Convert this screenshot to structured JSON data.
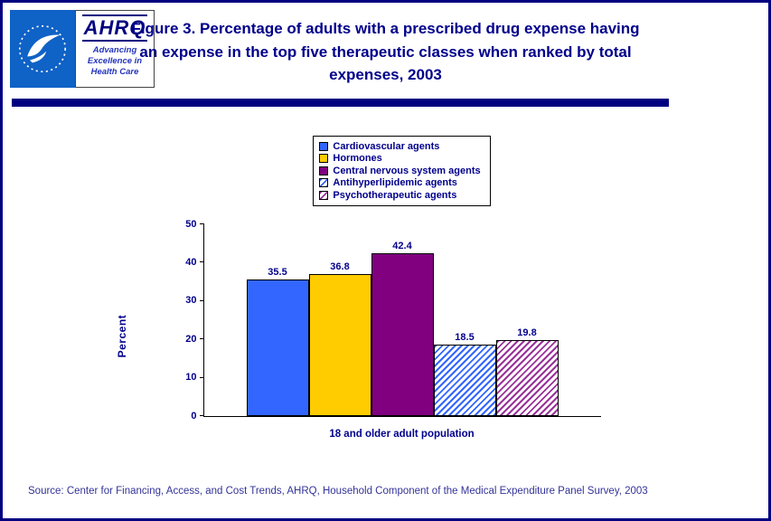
{
  "page": {
    "title": "Figure 3. Percentage of adults with a prescribed drug expense having an expense in the top five therapeutic classes when ranked by total expenses, 2003",
    "source": "Source: Center for Financing, Access, and Cost Trends, AHRQ, Household Component of the Medical Expenditure Panel Survey, 2003"
  },
  "logos": {
    "ahrq_name": "AHRQ",
    "ahrq_tagline_line1": "Advancing",
    "ahrq_tagline_line2": "Excellence in",
    "ahrq_tagline_line3": "Health Care"
  },
  "chart_data": {
    "type": "bar",
    "title": "Figure 3. Percentage of adults with a prescribed drug expense having an expense in the top five therapeutic classes when ranked by total expenses, 2003",
    "categories": [
      "18 and older adult population"
    ],
    "series": [
      {
        "name": "Cardiovascular agents",
        "values": [
          35.5
        ],
        "color": "#3366ff",
        "pattern": "solid"
      },
      {
        "name": "Hormones",
        "values": [
          36.8
        ],
        "color": "#ffcc00",
        "pattern": "solid"
      },
      {
        "name": "Central nervous system agents",
        "values": [
          42.4
        ],
        "color": "#800080",
        "pattern": "solid"
      },
      {
        "name": "Antihyperlipidemic agents",
        "values": [
          18.5
        ],
        "color": "#3366ff",
        "pattern": "hatch"
      },
      {
        "name": "Psychotherapeutic agents",
        "values": [
          19.8
        ],
        "color": "#993399",
        "pattern": "hatch"
      }
    ],
    "xlabel": "18 and older adult population",
    "ylabel": "Percent",
    "ylim": [
      0,
      50
    ],
    "yticks": [
      0,
      10,
      20,
      30,
      40,
      50
    ],
    "grid": false,
    "legend_position": "top-center"
  }
}
